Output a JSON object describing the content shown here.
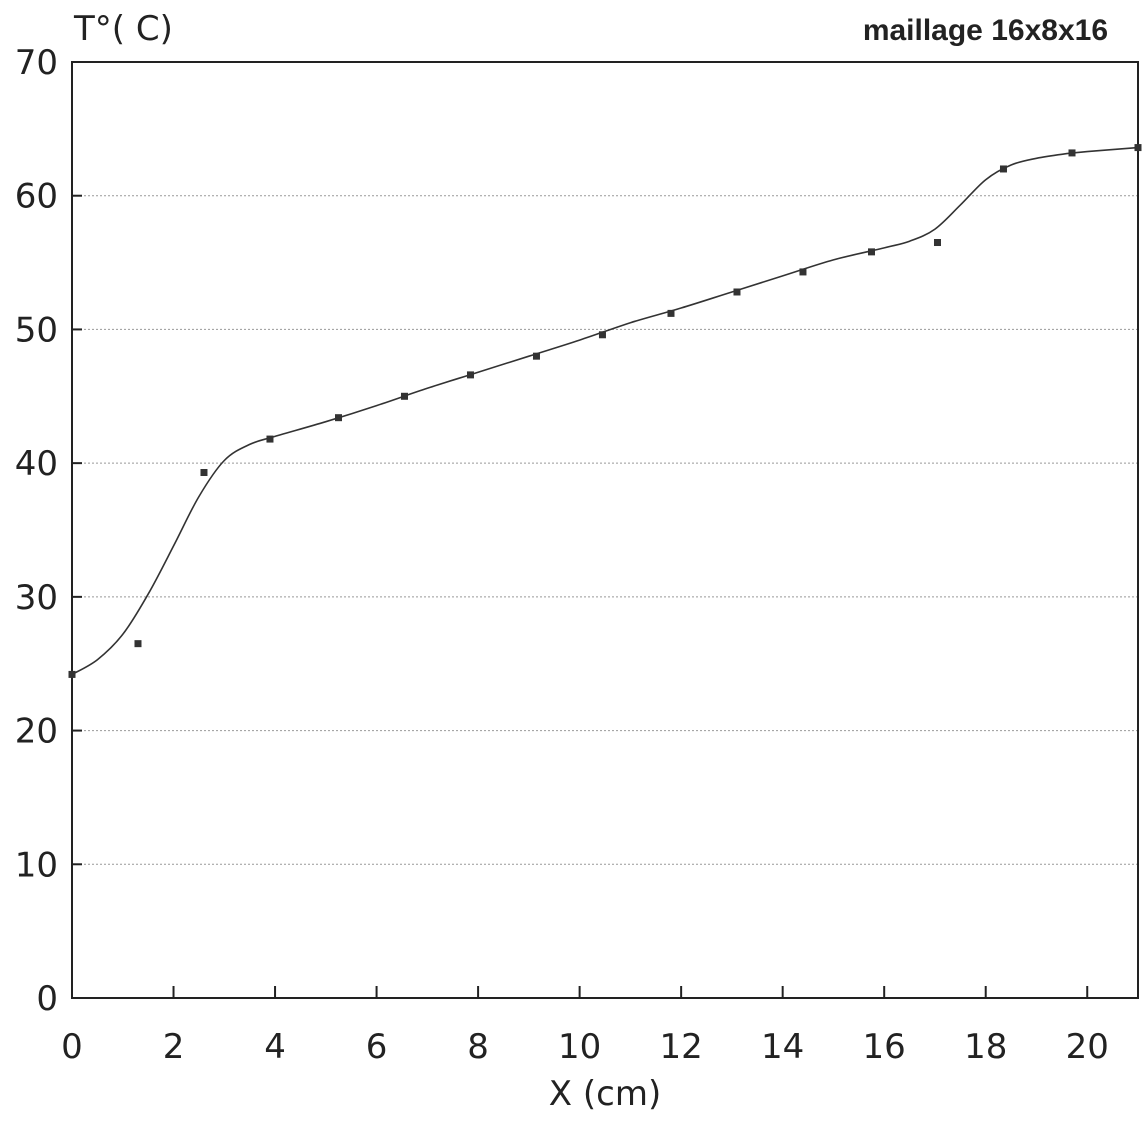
{
  "chart_data": {
    "type": "line",
    "title": "maillage 16x8x16",
    "xlabel": "X (cm)",
    "ylabel": "T°( C)",
    "xlim": [
      0,
      21
    ],
    "ylim": [
      0,
      70
    ],
    "xticks": [
      0,
      2,
      4,
      6,
      8,
      10,
      12,
      14,
      16,
      18,
      20
    ],
    "yticks": [
      0,
      10,
      20,
      30,
      40,
      50,
      60,
      70
    ],
    "grid": "horizontal-dotted",
    "colors": {
      "line": "#333333",
      "markers": "#333333",
      "grid": "#999999",
      "axes": "#222222"
    },
    "series": [
      {
        "kind": "scatter",
        "x": [
          0,
          1.3,
          2.6,
          3.9,
          5.25,
          6.55,
          7.85,
          9.15,
          10.45,
          11.8,
          13.1,
          14.4,
          15.75,
          17.05,
          18.35,
          19.7,
          21
        ],
        "y": [
          24.2,
          26.5,
          39.3,
          41.8,
          43.4,
          45.0,
          46.6,
          48.0,
          49.6,
          51.2,
          52.8,
          54.3,
          55.8,
          56.5,
          62.0,
          63.2,
          63.6
        ]
      },
      {
        "kind": "line",
        "x": [
          0,
          0.5,
          1.0,
          1.5,
          2.0,
          2.5,
          3.0,
          3.5,
          4.0,
          5.0,
          6.0,
          7.0,
          8.0,
          9.0,
          10.0,
          11.0,
          12.0,
          13.0,
          14.0,
          15.0,
          16.0,
          16.5,
          17.0,
          17.5,
          18.0,
          18.5,
          19.0,
          19.5,
          20.0,
          21.0
        ],
        "y": [
          24.2,
          25.3,
          27.2,
          30.2,
          33.8,
          37.5,
          40.2,
          41.4,
          42.0,
          43.1,
          44.3,
          45.6,
          46.8,
          48.0,
          49.2,
          50.5,
          51.6,
          52.8,
          54.0,
          55.2,
          56.1,
          56.6,
          57.5,
          59.3,
          61.2,
          62.3,
          62.8,
          63.1,
          63.3,
          63.6
        ]
      }
    ]
  }
}
